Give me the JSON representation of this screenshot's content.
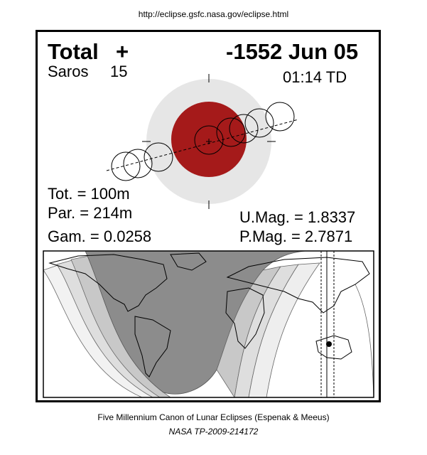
{
  "header_url": "http://eclipse.gsfc.nasa.gov/eclipse.html",
  "eclipse": {
    "type": "Total",
    "type_symbol": "+",
    "date": "-1552 Jun 05",
    "saros_label": "Saros",
    "saros_number": "15",
    "time": "01:14 TD"
  },
  "stats": {
    "tot": "Tot. = 100m",
    "par": "Par. = 214m",
    "gam": "Gam. = 0.0258",
    "umag": "U.Mag. = 1.8337",
    "pmag": "P.Mag. = 2.7871"
  },
  "colors": {
    "umbra": "#a51a1a",
    "penumbra": "#e6e6e6",
    "map_night": "#8c8c8c"
  },
  "footer": {
    "line1": "Five Millennium Canon of Lunar Eclipses (Espenak & Meeus)",
    "line2": "NASA TP-2009-214172"
  }
}
